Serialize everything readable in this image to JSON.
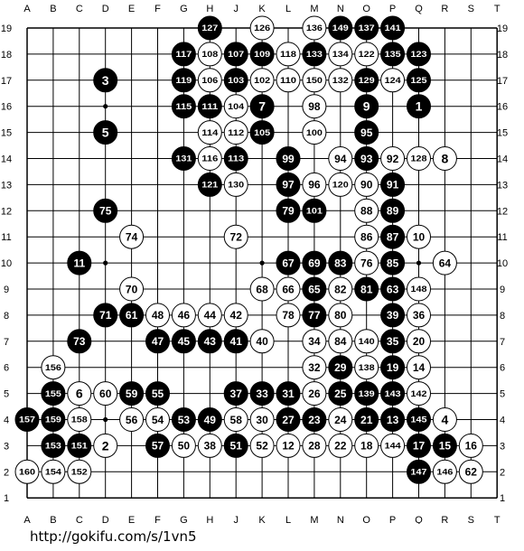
{
  "board": {
    "size": 19,
    "columns": [
      "A",
      "B",
      "C",
      "D",
      "E",
      "F",
      "G",
      "H",
      "J",
      "K",
      "L",
      "M",
      "N",
      "O",
      "P",
      "Q",
      "R",
      "S",
      "T"
    ],
    "rows": [
      "19",
      "18",
      "17",
      "16",
      "15",
      "14",
      "13",
      "12",
      "11",
      "10",
      "9",
      "8",
      "7",
      "6",
      "5",
      "4",
      "3",
      "2",
      "1"
    ],
    "star_points": [
      "D16",
      "K16",
      "Q16",
      "D10",
      "K10",
      "Q10",
      "D4",
      "K4",
      "Q4"
    ],
    "colors": {
      "black": "#000000",
      "white": "#ffffff",
      "line": "#000000"
    },
    "stones": [
      {
        "pt": "H19",
        "c": "b",
        "n": "127"
      },
      {
        "pt": "K19",
        "c": "w",
        "n": "126"
      },
      {
        "pt": "M19",
        "c": "w",
        "n": "136"
      },
      {
        "pt": "N19",
        "c": "b",
        "n": "149"
      },
      {
        "pt": "O19",
        "c": "b",
        "n": "137"
      },
      {
        "pt": "P19",
        "c": "b",
        "n": "141"
      },
      {
        "pt": "G18",
        "c": "b",
        "n": "117"
      },
      {
        "pt": "H18",
        "c": "w",
        "n": "108"
      },
      {
        "pt": "J18",
        "c": "b",
        "n": "107"
      },
      {
        "pt": "K18",
        "c": "b",
        "n": "109"
      },
      {
        "pt": "L18",
        "c": "w",
        "n": "118"
      },
      {
        "pt": "M18",
        "c": "b",
        "n": "133"
      },
      {
        "pt": "N18",
        "c": "w",
        "n": "134"
      },
      {
        "pt": "O18",
        "c": "w",
        "n": "122"
      },
      {
        "pt": "P18",
        "c": "b",
        "n": "135"
      },
      {
        "pt": "Q18",
        "c": "b",
        "n": "123"
      },
      {
        "pt": "D17",
        "c": "b",
        "n": "3"
      },
      {
        "pt": "G17",
        "c": "b",
        "n": "119"
      },
      {
        "pt": "H17",
        "c": "w",
        "n": "106"
      },
      {
        "pt": "J17",
        "c": "b",
        "n": "103"
      },
      {
        "pt": "K17",
        "c": "w",
        "n": "102"
      },
      {
        "pt": "L17",
        "c": "w",
        "n": "110"
      },
      {
        "pt": "M17",
        "c": "w",
        "n": "150"
      },
      {
        "pt": "N17",
        "c": "w",
        "n": "132"
      },
      {
        "pt": "O17",
        "c": "b",
        "n": "129"
      },
      {
        "pt": "P17",
        "c": "w",
        "n": "124"
      },
      {
        "pt": "Q17",
        "c": "b",
        "n": "125"
      },
      {
        "pt": "G16",
        "c": "b",
        "n": "115"
      },
      {
        "pt": "H16",
        "c": "b",
        "n": "111"
      },
      {
        "pt": "J16",
        "c": "w",
        "n": "104"
      },
      {
        "pt": "K16",
        "c": "b",
        "n": "7"
      },
      {
        "pt": "M16",
        "c": "w",
        "n": "98"
      },
      {
        "pt": "O16",
        "c": "b",
        "n": "9"
      },
      {
        "pt": "Q16",
        "c": "b",
        "n": "1"
      },
      {
        "pt": "D15",
        "c": "b",
        "n": "5"
      },
      {
        "pt": "H15",
        "c": "w",
        "n": "114"
      },
      {
        "pt": "J15",
        "c": "w",
        "n": "112"
      },
      {
        "pt": "K15",
        "c": "b",
        "n": "105"
      },
      {
        "pt": "M15",
        "c": "w",
        "n": "100"
      },
      {
        "pt": "O15",
        "c": "b",
        "n": "95"
      },
      {
        "pt": "G14",
        "c": "b",
        "n": "131"
      },
      {
        "pt": "H14",
        "c": "w",
        "n": "116"
      },
      {
        "pt": "J14",
        "c": "b",
        "n": "113"
      },
      {
        "pt": "L14",
        "c": "b",
        "n": "99"
      },
      {
        "pt": "N14",
        "c": "w",
        "n": "94"
      },
      {
        "pt": "O14",
        "c": "b",
        "n": "93"
      },
      {
        "pt": "P14",
        "c": "w",
        "n": "92"
      },
      {
        "pt": "Q14",
        "c": "w",
        "n": "128"
      },
      {
        "pt": "R14",
        "c": "w",
        "n": "8"
      },
      {
        "pt": "H13",
        "c": "b",
        "n": "121"
      },
      {
        "pt": "J13",
        "c": "w",
        "n": "130"
      },
      {
        "pt": "L13",
        "c": "b",
        "n": "97"
      },
      {
        "pt": "M13",
        "c": "w",
        "n": "96"
      },
      {
        "pt": "N13",
        "c": "w",
        "n": "120"
      },
      {
        "pt": "O13",
        "c": "w",
        "n": "90"
      },
      {
        "pt": "P13",
        "c": "b",
        "n": "91"
      },
      {
        "pt": "D12",
        "c": "b",
        "n": "75"
      },
      {
        "pt": "L12",
        "c": "b",
        "n": "79"
      },
      {
        "pt": "M12",
        "c": "b",
        "n": "101"
      },
      {
        "pt": "O12",
        "c": "w",
        "n": "88"
      },
      {
        "pt": "P12",
        "c": "b",
        "n": "89"
      },
      {
        "pt": "E11",
        "c": "w",
        "n": "74"
      },
      {
        "pt": "J11",
        "c": "w",
        "n": "72"
      },
      {
        "pt": "O11",
        "c": "w",
        "n": "86"
      },
      {
        "pt": "P11",
        "c": "b",
        "n": "87"
      },
      {
        "pt": "Q11",
        "c": "w",
        "n": "10"
      },
      {
        "pt": "C10",
        "c": "b",
        "n": "11"
      },
      {
        "pt": "L10",
        "c": "b",
        "n": "67"
      },
      {
        "pt": "M10",
        "c": "b",
        "n": "69"
      },
      {
        "pt": "N10",
        "c": "b",
        "n": "83"
      },
      {
        "pt": "O10",
        "c": "w",
        "n": "76"
      },
      {
        "pt": "P10",
        "c": "b",
        "n": "85"
      },
      {
        "pt": "R10",
        "c": "w",
        "n": "64"
      },
      {
        "pt": "E9",
        "c": "w",
        "n": "70"
      },
      {
        "pt": "K9",
        "c": "w",
        "n": "68"
      },
      {
        "pt": "L9",
        "c": "w",
        "n": "66"
      },
      {
        "pt": "M9",
        "c": "b",
        "n": "65"
      },
      {
        "pt": "N9",
        "c": "w",
        "n": "82"
      },
      {
        "pt": "O9",
        "c": "b",
        "n": "81"
      },
      {
        "pt": "P9",
        "c": "b",
        "n": "63"
      },
      {
        "pt": "Q9",
        "c": "w",
        "n": "148"
      },
      {
        "pt": "D8",
        "c": "b",
        "n": "71"
      },
      {
        "pt": "E8",
        "c": "b",
        "n": "61"
      },
      {
        "pt": "F8",
        "c": "w",
        "n": "48"
      },
      {
        "pt": "G8",
        "c": "w",
        "n": "46"
      },
      {
        "pt": "H8",
        "c": "w",
        "n": "44"
      },
      {
        "pt": "J8",
        "c": "w",
        "n": "42"
      },
      {
        "pt": "L8",
        "c": "w",
        "n": "78"
      },
      {
        "pt": "M8",
        "c": "b",
        "n": "77"
      },
      {
        "pt": "N8",
        "c": "w",
        "n": "80"
      },
      {
        "pt": "P8",
        "c": "b",
        "n": "39"
      },
      {
        "pt": "Q8",
        "c": "w",
        "n": "36"
      },
      {
        "pt": "C7",
        "c": "b",
        "n": "73"
      },
      {
        "pt": "F7",
        "c": "b",
        "n": "47"
      },
      {
        "pt": "G7",
        "c": "b",
        "n": "45"
      },
      {
        "pt": "H7",
        "c": "b",
        "n": "43"
      },
      {
        "pt": "J7",
        "c": "b",
        "n": "41"
      },
      {
        "pt": "K7",
        "c": "w",
        "n": "40"
      },
      {
        "pt": "M7",
        "c": "w",
        "n": "34"
      },
      {
        "pt": "N7",
        "c": "w",
        "n": "84"
      },
      {
        "pt": "O7",
        "c": "w",
        "n": "140"
      },
      {
        "pt": "P7",
        "c": "b",
        "n": "35"
      },
      {
        "pt": "Q7",
        "c": "w",
        "n": "20"
      },
      {
        "pt": "B6",
        "c": "w",
        "n": "156"
      },
      {
        "pt": "M6",
        "c": "w",
        "n": "32"
      },
      {
        "pt": "N6",
        "c": "b",
        "n": "29"
      },
      {
        "pt": "O6",
        "c": "w",
        "n": "138"
      },
      {
        "pt": "P6",
        "c": "b",
        "n": "19"
      },
      {
        "pt": "Q6",
        "c": "w",
        "n": "14"
      },
      {
        "pt": "B5",
        "c": "b",
        "n": "155"
      },
      {
        "pt": "C5",
        "c": "w",
        "n": "6"
      },
      {
        "pt": "D5",
        "c": "w",
        "n": "60"
      },
      {
        "pt": "E5",
        "c": "b",
        "n": "59"
      },
      {
        "pt": "F5",
        "c": "b",
        "n": "55"
      },
      {
        "pt": "J5",
        "c": "b",
        "n": "37"
      },
      {
        "pt": "K5",
        "c": "b",
        "n": "33"
      },
      {
        "pt": "L5",
        "c": "b",
        "n": "31"
      },
      {
        "pt": "M5",
        "c": "w",
        "n": "26"
      },
      {
        "pt": "N5",
        "c": "b",
        "n": "25"
      },
      {
        "pt": "O5",
        "c": "b",
        "n": "139"
      },
      {
        "pt": "P5",
        "c": "b",
        "n": "143"
      },
      {
        "pt": "Q5",
        "c": "w",
        "n": "142"
      },
      {
        "pt": "A4",
        "c": "b",
        "n": "157"
      },
      {
        "pt": "B4",
        "c": "b",
        "n": "159"
      },
      {
        "pt": "C4",
        "c": "w",
        "n": "158"
      },
      {
        "pt": "E4",
        "c": "w",
        "n": "56"
      },
      {
        "pt": "F4",
        "c": "w",
        "n": "54"
      },
      {
        "pt": "G4",
        "c": "b",
        "n": "53"
      },
      {
        "pt": "H4",
        "c": "b",
        "n": "49"
      },
      {
        "pt": "J4",
        "c": "w",
        "n": "58"
      },
      {
        "pt": "K4",
        "c": "w",
        "n": "30"
      },
      {
        "pt": "L4",
        "c": "b",
        "n": "27"
      },
      {
        "pt": "M4",
        "c": "b",
        "n": "23"
      },
      {
        "pt": "N4",
        "c": "w",
        "n": "24"
      },
      {
        "pt": "O4",
        "c": "b",
        "n": "21"
      },
      {
        "pt": "P4",
        "c": "b",
        "n": "13"
      },
      {
        "pt": "Q4",
        "c": "b",
        "n": "145"
      },
      {
        "pt": "R4",
        "c": "w",
        "n": "4"
      },
      {
        "pt": "B3",
        "c": "b",
        "n": "153"
      },
      {
        "pt": "C3",
        "c": "b",
        "n": "151"
      },
      {
        "pt": "D3",
        "c": "w",
        "n": "2"
      },
      {
        "pt": "F3",
        "c": "b",
        "n": "57"
      },
      {
        "pt": "G3",
        "c": "w",
        "n": "50"
      },
      {
        "pt": "H3",
        "c": "w",
        "n": "38"
      },
      {
        "pt": "J3",
        "c": "b",
        "n": "51"
      },
      {
        "pt": "K3",
        "c": "w",
        "n": "52"
      },
      {
        "pt": "L3",
        "c": "w",
        "n": "12"
      },
      {
        "pt": "M3",
        "c": "w",
        "n": "28"
      },
      {
        "pt": "N3",
        "c": "w",
        "n": "22"
      },
      {
        "pt": "O3",
        "c": "w",
        "n": "18"
      },
      {
        "pt": "P3",
        "c": "w",
        "n": "144"
      },
      {
        "pt": "Q3",
        "c": "b",
        "n": "17"
      },
      {
        "pt": "R3",
        "c": "b",
        "n": "15"
      },
      {
        "pt": "S3",
        "c": "w",
        "n": "16"
      },
      {
        "pt": "A2",
        "c": "w",
        "n": "160"
      },
      {
        "pt": "B2",
        "c": "w",
        "n": "154"
      },
      {
        "pt": "C2",
        "c": "w",
        "n": "152"
      },
      {
        "pt": "Q2",
        "c": "b",
        "n": "147"
      },
      {
        "pt": "R2",
        "c": "w",
        "n": "146"
      },
      {
        "pt": "S2",
        "c": "w",
        "n": "62"
      }
    ]
  },
  "footer": {
    "source_url": "http://gokifu.com/s/1vn5"
  }
}
